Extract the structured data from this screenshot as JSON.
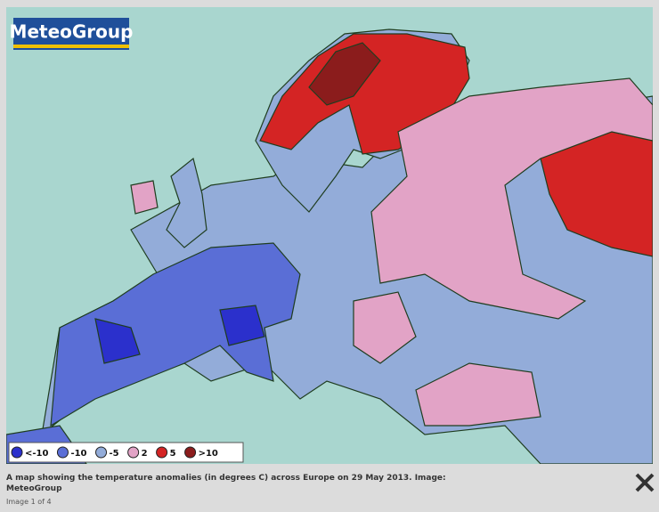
{
  "logo": "MeteoGroup",
  "legend": [
    {
      "label": "<-10",
      "color": "#2b30cc"
    },
    {
      "label": "-10",
      "color": "#5a6ed6"
    },
    {
      "label": "-5",
      "color": "#93acd9"
    },
    {
      "label": "2",
      "color": "#e2a3c6"
    },
    {
      "label": "5",
      "color": "#d42424"
    },
    {
      "label": ">10",
      "color": "#8b1c1c"
    }
  ],
  "caption": "A map showing the temperature anomalies (in degrees C) across Europe on 29 May 2013. Image: MeteoGroup",
  "counter": "Image 1 of 4"
}
